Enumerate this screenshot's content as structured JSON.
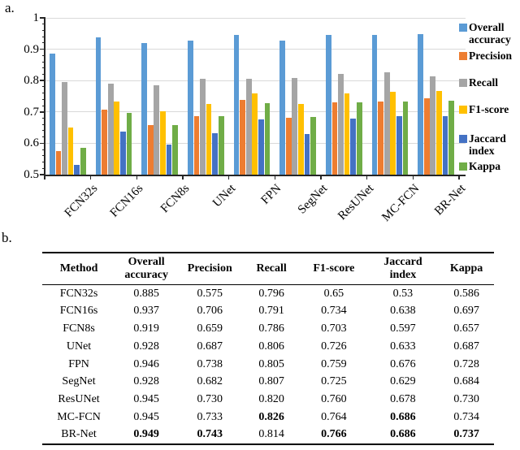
{
  "panel_a_label": "a.",
  "panel_b_label": "b.",
  "chart_data": {
    "type": "bar",
    "title": "",
    "xlabel": "",
    "ylabel": "",
    "ylim": [
      0.5,
      1.0
    ],
    "y_ticks": [
      1,
      0.9,
      0.8,
      0.7,
      0.6,
      0.5
    ],
    "y_tick_labels": [
      "1",
      "0.9",
      "0.8",
      "0.7",
      "0.6",
      "0.5"
    ],
    "y_minor_tick_step": 0.02,
    "grid": true,
    "legend_position": "right",
    "categories": [
      "FCN32s",
      "FCN16s",
      "FCN8s",
      "UNet",
      "FPN",
      "SegNet",
      "ResUNet",
      "MC-FCN",
      "BR-Net"
    ],
    "series": [
      {
        "name": "Overall accuracy",
        "color": "#5B9BD5",
        "values": [
          0.885,
          0.937,
          0.919,
          0.928,
          0.946,
          0.928,
          0.945,
          0.945,
          0.949
        ]
      },
      {
        "name": "Precision",
        "color": "#ED7D31",
        "values": [
          0.575,
          0.706,
          0.659,
          0.687,
          0.738,
          0.682,
          0.73,
          0.733,
          0.743
        ]
      },
      {
        "name": "Recall",
        "color": "#A5A5A5",
        "values": [
          0.796,
          0.791,
          0.786,
          0.806,
          0.805,
          0.807,
          0.82,
          0.826,
          0.814
        ]
      },
      {
        "name": "F1-score",
        "color": "#FFC000",
        "values": [
          0.65,
          0.734,
          0.703,
          0.726,
          0.759,
          0.725,
          0.76,
          0.764,
          0.766
        ]
      },
      {
        "name": "Jaccard index",
        "color": "#4472C4",
        "values": [
          0.53,
          0.638,
          0.597,
          0.633,
          0.676,
          0.629,
          0.678,
          0.686,
          0.686
        ]
      },
      {
        "name": "Kappa",
        "color": "#70AD47",
        "values": [
          0.586,
          0.697,
          0.657,
          0.687,
          0.728,
          0.684,
          0.73,
          0.734,
          0.737
        ]
      }
    ],
    "legend_labels": [
      [
        "Overall",
        "accuracy"
      ],
      [
        "Precision"
      ],
      [
        "Recall"
      ],
      [
        "F1-score"
      ],
      [
        "Jaccard",
        "index"
      ],
      [
        "Kappa"
      ]
    ]
  },
  "table": {
    "header_lines": [
      [
        "Method"
      ],
      [
        "Overall",
        "accuracy"
      ],
      [
        "Precision"
      ],
      [
        "Recall"
      ],
      [
        "F1-score"
      ],
      [
        "Jaccard",
        "index"
      ],
      [
        "Kappa"
      ]
    ],
    "rows": [
      {
        "cells": [
          "FCN32s",
          "0.885",
          "0.575",
          "0.796",
          "0.65",
          "0.53",
          "0.586"
        ],
        "bold": [
          false,
          false,
          false,
          false,
          false,
          false,
          false
        ]
      },
      {
        "cells": [
          "FCN16s",
          "0.937",
          "0.706",
          "0.791",
          "0.734",
          "0.638",
          "0.697"
        ],
        "bold": [
          false,
          false,
          false,
          false,
          false,
          false,
          false
        ]
      },
      {
        "cells": [
          "FCN8s",
          "0.919",
          "0.659",
          "0.786",
          "0.703",
          "0.597",
          "0.657"
        ],
        "bold": [
          false,
          false,
          false,
          false,
          false,
          false,
          false
        ]
      },
      {
        "cells": [
          "UNet",
          "0.928",
          "0.687",
          "0.806",
          "0.726",
          "0.633",
          "0.687"
        ],
        "bold": [
          false,
          false,
          false,
          false,
          false,
          false,
          false
        ]
      },
      {
        "cells": [
          "FPN",
          "0.946",
          "0.738",
          "0.805",
          "0.759",
          "0.676",
          "0.728"
        ],
        "bold": [
          false,
          false,
          false,
          false,
          false,
          false,
          false
        ]
      },
      {
        "cells": [
          "SegNet",
          "0.928",
          "0.682",
          "0.807",
          "0.725",
          "0.629",
          "0.684"
        ],
        "bold": [
          false,
          false,
          false,
          false,
          false,
          false,
          false
        ]
      },
      {
        "cells": [
          "ResUNet",
          "0.945",
          "0.730",
          "0.820",
          "0.760",
          "0.678",
          "0.730"
        ],
        "bold": [
          false,
          false,
          false,
          false,
          false,
          false,
          false
        ]
      },
      {
        "cells": [
          "MC-FCN",
          "0.945",
          "0.733",
          "0.826",
          "0.764",
          "0.686",
          "0.734"
        ],
        "bold": [
          false,
          false,
          false,
          true,
          false,
          true,
          false
        ]
      },
      {
        "cells": [
          "BR-Net",
          "0.949",
          "0.743",
          "0.814",
          "0.766",
          "0.686",
          "0.737"
        ],
        "bold": [
          false,
          true,
          true,
          false,
          true,
          true,
          true
        ]
      }
    ]
  }
}
